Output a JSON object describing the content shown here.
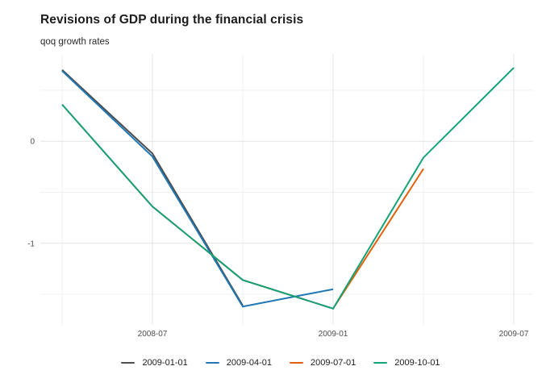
{
  "chart_data": {
    "type": "line",
    "title": "Revisions of GDP during the financial crisis",
    "subtitle": "qoq growth rates",
    "x": [
      "2008-04",
      "2008-07",
      "2008-10",
      "2009-01",
      "2009-04",
      "2009-07"
    ],
    "series": [
      {
        "name": "2009-01-01",
        "color": "#4d4d4d",
        "values": [
          0.7,
          -0.12,
          -1.61,
          null,
          null,
          null
        ]
      },
      {
        "name": "2009-04-01",
        "color": "#1f78b4",
        "values": [
          0.69,
          -0.15,
          -1.62,
          -1.45,
          null,
          null
        ]
      },
      {
        "name": "2009-07-01",
        "color": "#e0610a",
        "values": [
          0.36,
          -0.64,
          -1.36,
          -1.64,
          -0.27,
          null
        ]
      },
      {
        "name": "2009-10-01",
        "color": "#14a379",
        "values": [
          0.36,
          -0.64,
          -1.36,
          -1.64,
          -0.16,
          0.72
        ]
      }
    ],
    "x_axis": {
      "tick_labels": [
        "2008-07",
        "2009-01",
        "2009-07"
      ],
      "tick_index": [
        1,
        3,
        5
      ],
      "minor_index": [
        0,
        2,
        4
      ]
    },
    "y_axis": {
      "tick_values": [
        0,
        -1
      ],
      "tick_labels": [
        "0",
        "-1"
      ],
      "minor_values": [
        0.5,
        -0.5,
        -1.5
      ],
      "ylim": [
        -1.8,
        0.855
      ]
    },
    "legend_position": "bottom",
    "grid": {
      "major_color": "#e3e3e3",
      "minor_color": "#f0f0f0"
    }
  }
}
